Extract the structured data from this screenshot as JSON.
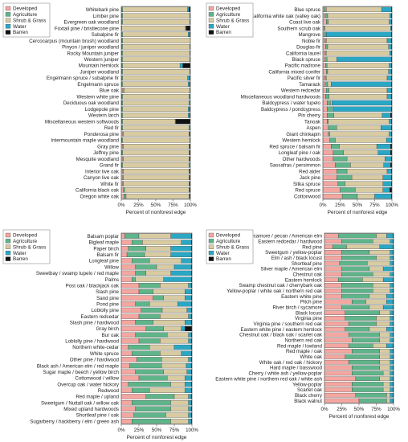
{
  "colors": {
    "Developed": "#f4a6a0",
    "Agriculture": "#5fb48a",
    "Shrub & Grass": "#d8cba2",
    "Water": "#2aa7c4",
    "Barren": "#111111"
  },
  "chart_data": [
    {
      "type": "bar",
      "orientation": "horizontal",
      "stacked": true,
      "xlabel": "Percent of nonforest edge",
      "xticks": [
        "0%",
        "25%",
        "50%",
        "75%",
        "100%"
      ],
      "xlim": [
        0,
        100
      ],
      "legend": [
        "Developed",
        "Agriculture",
        "Shrub & Grass",
        "Water",
        "Barren"
      ],
      "legend_position": "top-left",
      "categories": [
        "Whitebark pine",
        "Limber pine",
        "Evergreen oak woodland",
        "Foxtail pine / bristlecone pine",
        "Subalpine fir",
        "Cercocarpus (mountain brush) woodland",
        "Pinyon / juniper woodland",
        "Rocky Mountain juniper",
        "Western juniper",
        "Mountain hemlock",
        "Juniper woodland",
        "Engelmann spruce / subalpine fir",
        "Engelmann spruce",
        "Blue oak",
        "Western white pine",
        "Deciduous oak woodland",
        "Lodgepole pine",
        "Western larch",
        "Miscellaneous western softwoods",
        "Red fir",
        "Ponderosa pine",
        "Intermountain maple woodland",
        "Gray pine",
        "Jeffrey pine",
        "Mesquite woodland",
        "Grand fir",
        "Interior live oak",
        "Canyon live oak",
        "White fir",
        "California black oak",
        "Oregon white oak"
      ],
      "series": [
        {
          "name": "Developed",
          "values": [
            1,
            1,
            1,
            1,
            1,
            1,
            1,
            1,
            1,
            1,
            1,
            1,
            1,
            2,
            1,
            1,
            1,
            1,
            1,
            1,
            2,
            1,
            2,
            1,
            2,
            1,
            2,
            2,
            2,
            3,
            4
          ]
        },
        {
          "name": "Agriculture",
          "values": [
            1,
            1,
            1,
            0,
            1,
            1,
            1,
            1,
            1,
            1,
            1,
            1,
            1,
            2,
            1,
            1,
            1,
            1,
            1,
            1,
            1,
            1,
            1,
            1,
            1,
            1,
            1,
            1,
            1,
            2,
            3
          ]
        },
        {
          "name": "Shrub & Grass",
          "values": [
            94,
            97,
            97,
            92,
            95,
            98,
            97,
            97,
            97,
            83,
            97,
            94,
            95,
            95,
            96,
            96,
            95,
            95,
            76,
            96,
            95,
            97,
            95,
            96,
            95,
            96,
            95,
            95,
            95,
            93,
            91
          ]
        },
        {
          "name": "Water",
          "values": [
            2,
            1,
            1,
            1,
            2,
            0,
            1,
            1,
            1,
            4,
            1,
            3,
            2,
            1,
            2,
            2,
            2,
            2,
            1,
            2,
            1,
            1,
            1,
            1,
            1,
            2,
            1,
            1,
            1,
            1,
            1
          ]
        },
        {
          "name": "Barren",
          "values": [
            2,
            0,
            0,
            6,
            1,
            0,
            0,
            0,
            0,
            11,
            0,
            1,
            1,
            0,
            0,
            0,
            1,
            1,
            21,
            0,
            1,
            0,
            1,
            1,
            1,
            0,
            1,
            1,
            1,
            1,
            1
          ]
        }
      ]
    },
    {
      "type": "bar",
      "orientation": "horizontal",
      "stacked": true,
      "xlabel": "Percent of nonforest edge",
      "xticks": [
        "0%",
        "25%",
        "50%",
        "75%",
        "100%"
      ],
      "xlim": [
        0,
        100
      ],
      "legend": [
        "Developed",
        "Agriculture",
        "Shrub & Grass",
        "Water",
        "Barren"
      ],
      "legend_position": "top-left",
      "categories": [
        "Blue spruce",
        "California white oak (valley oak)",
        "Coast live oak",
        "Southern scrub oak",
        "Mangrove",
        "Noble fir",
        "Douglas-fir",
        "California laurel",
        "Black spruce",
        "Pacific madrone",
        "California mixed conifer",
        "Pacific silver fir",
        "Tamarack",
        "Western redcedar",
        "Miscellaneous woodland hardwoods",
        "Baldcypress / water tupelo",
        "Baldcypress / pondcypress",
        "Pin cherry",
        "Tanoak",
        "Aspen",
        "Giant chinkapin",
        "Western hemlock",
        "Red spruce / balsam fir",
        "Longleaf pine / oak",
        "Other hardwoods",
        "Sassafras / persimmon",
        "Red alder",
        "Jack pine",
        "Sitka spruce",
        "Red spruce",
        "Cottonwood"
      ],
      "series": [
        {
          "name": "Developed",
          "values": [
            2,
            3,
            5,
            2,
            2,
            3,
            4,
            3,
            3,
            4,
            5,
            3,
            3,
            5,
            4,
            6,
            6,
            6,
            6,
            8,
            8,
            10,
            12,
            15,
            15,
            18,
            20,
            20,
            22,
            25,
            28
          ]
        },
        {
          "name": "Agriculture",
          "values": [
            3,
            4,
            3,
            1,
            2,
            2,
            3,
            2,
            3,
            2,
            2,
            2,
            4,
            4,
            5,
            5,
            6,
            10,
            2,
            12,
            2,
            8,
            12,
            15,
            20,
            22,
            15,
            22,
            10,
            22,
            22
          ]
        },
        {
          "name": "Shrub & Grass",
          "values": [
            80,
            90,
            88,
            95,
            1,
            88,
            88,
            92,
            14,
            90,
            88,
            88,
            5,
            84,
            84,
            2,
            2,
            70,
            88,
            64,
            86,
            74,
            54,
            50,
            55,
            48,
            58,
            45,
            55,
            40,
            25
          ]
        },
        {
          "name": "Water",
          "values": [
            14,
            2,
            3,
            1,
            94,
            6,
            4,
            2,
            79,
            3,
            4,
            6,
            87,
            6,
            6,
            86,
            85,
            12,
            3,
            15,
            3,
            7,
            20,
            18,
            9,
            10,
            6,
            12,
            12,
            10,
            24
          ]
        },
        {
          "name": "Barren",
          "values": [
            1,
            1,
            1,
            1,
            1,
            1,
            1,
            1,
            1,
            1,
            1,
            1,
            1,
            1,
            1,
            1,
            1,
            2,
            1,
            1,
            1,
            1,
            2,
            2,
            1,
            2,
            1,
            1,
            1,
            3,
            1
          ]
        }
      ]
    },
    {
      "type": "bar",
      "orientation": "horizontal",
      "stacked": true,
      "xlabel": "Percent of nonforest edge",
      "xticks": [
        "0%",
        "25%",
        "50%",
        "75%",
        "100%"
      ],
      "xlim": [
        0,
        100
      ],
      "legend": [
        "Developed",
        "Agriculture",
        "Shrub & Grass",
        "Water",
        "Barren"
      ],
      "legend_position": "top-left",
      "categories": [
        "Balsam poplar",
        "Bigleaf maple",
        "Paper birch",
        "Balsam fir",
        "Longleaf pine",
        "Willow",
        "Sweetbay / swamp tupelo / red maple",
        "Palms",
        "Post oak / blackjack oak",
        "Slash pine",
        "Sand pine",
        "Pond pine",
        "Loblolly pine",
        "Eastern redcedar",
        "Slash pine / hardwood",
        "Gray birch",
        "Bur oak",
        "Loblolly pine / hardwood",
        "Northern white-cedar",
        "White spruce",
        "Other pine / hardwood",
        "Black ash / American elm / red maple",
        "Sugar maple / beech / yellow birch",
        "Cottonwood / willow",
        "Overcup oak / water hickory",
        "Redwood",
        "Red maple / upland",
        "Sweetgum / Nuttall oak / willow oak",
        "Mixed upland hardwoods",
        "Shortleaf pine / oak",
        "Sugarberry / hackberry / elm / green ash"
      ],
      "series": [
        {
          "name": "Developed",
          "values": [
            5,
            15,
            10,
            8,
            15,
            20,
            20,
            15,
            25,
            25,
            45,
            20,
            28,
            25,
            20,
            35,
            20,
            25,
            10,
            15,
            22,
            12,
            20,
            25,
            10,
            15,
            35,
            15,
            20,
            18,
            15
          ]
        },
        {
          "name": "Agriculture",
          "values": [
            20,
            15,
            25,
            25,
            25,
            30,
            15,
            5,
            30,
            20,
            15,
            20,
            30,
            30,
            25,
            25,
            45,
            30,
            30,
            40,
            35,
            45,
            40,
            40,
            60,
            25,
            40,
            55,
            50,
            45,
            55
          ]
        },
        {
          "name": "Shrub & Grass",
          "values": [
            45,
            55,
            35,
            37,
            45,
            25,
            35,
            40,
            40,
            45,
            30,
            40,
            35,
            40,
            45,
            25,
            30,
            40,
            35,
            30,
            38,
            35,
            33,
            25,
            20,
            50,
            20,
            25,
            25,
            32,
            25
          ]
        },
        {
          "name": "Water",
          "values": [
            29,
            14,
            29,
            29,
            14,
            24,
            29,
            39,
            4,
            9,
            9,
            19,
            6,
            4,
            9,
            5,
            4,
            4,
            24,
            14,
            4,
            7,
            6,
            9,
            9,
            9,
            4,
            4,
            4,
            4,
            4
          ]
        },
        {
          "name": "Barren",
          "values": [
            1,
            1,
            1,
            1,
            1,
            1,
            1,
            1,
            1,
            1,
            1,
            1,
            1,
            1,
            1,
            10,
            1,
            1,
            1,
            1,
            1,
            1,
            1,
            1,
            1,
            1,
            1,
            1,
            1,
            1,
            1
          ]
        }
      ]
    },
    {
      "type": "bar",
      "orientation": "horizontal",
      "stacked": true,
      "xlabel": "Percent of nonforest edge",
      "xticks": [
        "0%",
        "25%",
        "50%",
        "75%",
        "100%"
      ],
      "xlim": [
        0,
        100
      ],
      "legend": [
        "Developed",
        "Agriculture",
        "Shrub & Grass",
        "Water",
        "Barren"
      ],
      "legend_position": "top-left",
      "categories": [
        "Sycamore / pecan / American elm",
        "Eastern redcedar / hardwood",
        "Red pine",
        "Sweetgum / yellow-poplar",
        "Elm / ash / black locust",
        "Shortleaf pine",
        "Silver maple / American elm",
        "Chestnut oak",
        "Eastern hemlock",
        "Swamp chestnut oak / cherrybark oak",
        "Yellow-poplar / white oak / northern red oak",
        "Eastern white pine",
        "Pitch pine",
        "River birch / sycamore",
        "Black locust",
        "Virginia pine",
        "Virginia pine / southern red oak",
        "Eastern white pine / eastern hemlock",
        "Chestnut oak / black oak / scarlet oak",
        "Northern red oak",
        "Red maple / lowland",
        "Red maple / oak",
        "White oak",
        "White oak / red oak / hickory",
        "Hard maple / basswood",
        "Cherry / white ash / yellow-poplar",
        "Eastern white pine / northern red oak / white ash",
        "Yellow-poplar",
        "Scarlet oak",
        "Black cherry",
        "Black walnut"
      ],
      "series": [
        {
          "name": "Developed",
          "values": [
            20,
            25,
            12,
            25,
            25,
            22,
            25,
            25,
            20,
            25,
            25,
            25,
            40,
            25,
            30,
            30,
            35,
            30,
            35,
            40,
            35,
            40,
            30,
            35,
            40,
            40,
            45,
            40,
            40,
            45,
            50
          ]
        },
        {
          "name": "Agriculture",
          "values": [
            55,
            45,
            20,
            40,
            50,
            40,
            40,
            45,
            35,
            45,
            45,
            40,
            20,
            40,
            50,
            45,
            40,
            35,
            45,
            40,
            35,
            40,
            50,
            45,
            40,
            45,
            35,
            45,
            45,
            45,
            40
          ]
        },
        {
          "name": "Shrub & Grass",
          "values": [
            15,
            25,
            48,
            30,
            20,
            33,
            20,
            25,
            30,
            25,
            25,
            25,
            30,
            20,
            15,
            20,
            20,
            25,
            15,
            15,
            20,
            15,
            15,
            15,
            15,
            10,
            15,
            10,
            10,
            5,
            5
          ]
        },
        {
          "name": "Water",
          "values": [
            9,
            4,
            19,
            4,
            4,
            4,
            14,
            4,
            14,
            4,
            4,
            9,
            9,
            14,
            4,
            4,
            4,
            9,
            4,
            4,
            9,
            4,
            4,
            4,
            4,
            4,
            4,
            4,
            4,
            4,
            4
          ]
        },
        {
          "name": "Barren",
          "values": [
            1,
            1,
            1,
            1,
            1,
            1,
            1,
            1,
            1,
            1,
            1,
            1,
            1,
            1,
            1,
            1,
            1,
            1,
            1,
            1,
            1,
            1,
            1,
            1,
            1,
            1,
            1,
            1,
            1,
            1,
            1
          ]
        }
      ]
    }
  ]
}
